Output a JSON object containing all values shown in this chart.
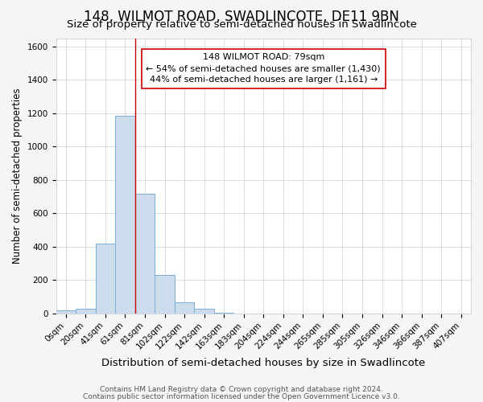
{
  "title": "148, WILMOT ROAD, SWADLINCOTE, DE11 9BN",
  "subtitle": "Size of property relative to semi-detached houses in Swadlincote",
  "xlabel": "Distribution of semi-detached houses by size in Swadlincote",
  "ylabel": "Number of semi-detached properties",
  "footnote1": "Contains HM Land Registry data © Crown copyright and database right 2024.",
  "footnote2": "Contains public sector information licensed under the Open Government Licence v3.0.",
  "bar_labels": [
    "0sqm",
    "20sqm",
    "41sqm",
    "61sqm",
    "81sqm",
    "102sqm",
    "122sqm",
    "142sqm",
    "163sqm",
    "183sqm",
    "204sqm",
    "224sqm",
    "244sqm",
    "265sqm",
    "285sqm",
    "305sqm",
    "326sqm",
    "346sqm",
    "366sqm",
    "387sqm",
    "407sqm"
  ],
  "bar_values": [
    15,
    25,
    420,
    1185,
    715,
    230,
    65,
    25,
    5,
    0,
    0,
    0,
    0,
    0,
    0,
    0,
    0,
    0,
    0,
    0,
    0
  ],
  "bar_color": "#ccdcec",
  "bar_edge_color": "#7aafd4",
  "property_line_index": 4,
  "property_line_color": "#cc0000",
  "annotation_line1": "148 WILMOT ROAD: 79sqm",
  "annotation_line2": "← 54% of semi-detached houses are smaller (1,430)",
  "annotation_line3": "44% of semi-detached houses are larger (1,161) →",
  "annotation_box_color": "white",
  "annotation_box_edge": "#cc0000",
  "ylim": [
    0,
    1650
  ],
  "yticks": [
    0,
    200,
    400,
    600,
    800,
    1000,
    1200,
    1400,
    1600
  ],
  "figure_bg_color": "#f5f5f5",
  "plot_bg_color": "white",
  "grid_color": "#d0d8e0",
  "title_fontsize": 12,
  "subtitle_fontsize": 9.5,
  "xlabel_fontsize": 9.5,
  "ylabel_fontsize": 8.5,
  "tick_fontsize": 7.5,
  "footnote_fontsize": 6.5
}
